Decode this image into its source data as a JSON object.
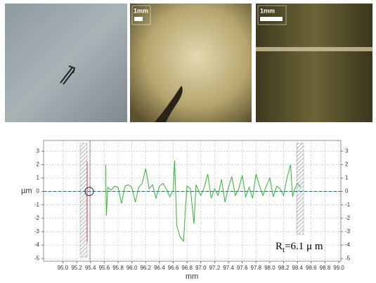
{
  "figure": {
    "photos": [
      {
        "scale_label": null
      },
      {
        "scale_label": "1mm"
      },
      {
        "scale_label": "1mm"
      }
    ]
  },
  "chart_data": {
    "type": "line",
    "y_label": "µm",
    "x_label": "mm",
    "annotation": {
      "base": "R",
      "subscript": "t",
      "rest": "=6.1 μ m"
    },
    "x": [
      95.62,
      95.63,
      95.65,
      95.7,
      95.75,
      95.8,
      95.85,
      95.9,
      95.95,
      96.0,
      96.05,
      96.1,
      96.15,
      96.2,
      96.25,
      96.3,
      96.35,
      96.4,
      96.45,
      96.5,
      96.55,
      96.6,
      96.62,
      96.65,
      96.7,
      96.75,
      96.78,
      96.8,
      96.85,
      96.9,
      96.93,
      97.0,
      97.05,
      97.1,
      97.15,
      97.2,
      97.25,
      97.3,
      97.35,
      97.4,
      97.45,
      97.5,
      97.55,
      97.6,
      97.65,
      97.7,
      97.75,
      97.8,
      97.85,
      97.9,
      97.95,
      98.0,
      98.05,
      98.1,
      98.15,
      98.2,
      98.25,
      98.3,
      98.33,
      98.36,
      98.4,
      98.45
    ],
    "series": [
      {
        "color": "#2fb52f",
        "values": [
          2.0,
          -1.8,
          0.3,
          0.1,
          0.4,
          0.3,
          -0.9,
          0.4,
          0.5,
          0.3,
          -0.8,
          0.3,
          0.6,
          1.7,
          0.2,
          0.5,
          -0.5,
          0.4,
          0.6,
          0.2,
          -0.4,
          0.1,
          2.3,
          -2.5,
          -3.4,
          -3.7,
          -1.0,
          0.4,
          0.2,
          -2.4,
          0.5,
          -0.3,
          0.3,
          1.3,
          -0.5,
          0.2,
          -0.3,
          0.9,
          -0.8,
          0.3,
          1.1,
          -0.3,
          0.2,
          1.2,
          -0.4,
          0.3,
          -0.5,
          1.3,
          0.4,
          -0.3,
          0.4,
          1.0,
          -0.4,
          0.4,
          0.2,
          -0.3,
          1.0,
          2.0,
          -0.4,
          0.2,
          0.6,
          0.3
        ]
      }
    ],
    "xlim": [
      94.72,
      99.03
    ],
    "ylim": [
      -5.2,
      3.8
    ],
    "xticks": [
      {
        "value": 95,
        "label": "95.0"
      },
      95.2,
      95.4,
      95.6,
      95.8,
      {
        "value": 96,
        "label": "96.0"
      },
      96.2,
      96.4,
      96.6,
      96.8,
      {
        "value": 97,
        "label": "97.0"
      },
      97.2,
      97.4,
      97.6,
      97.8,
      {
        "value": 98,
        "label": "98.0"
      },
      98.2,
      98.4,
      98.6,
      98.8,
      {
        "value": 99,
        "label": "99.0"
      }
    ],
    "yticks": [
      -5,
      -4,
      -3,
      -2,
      -1,
      0,
      1,
      2,
      3
    ],
    "grid": true
  }
}
